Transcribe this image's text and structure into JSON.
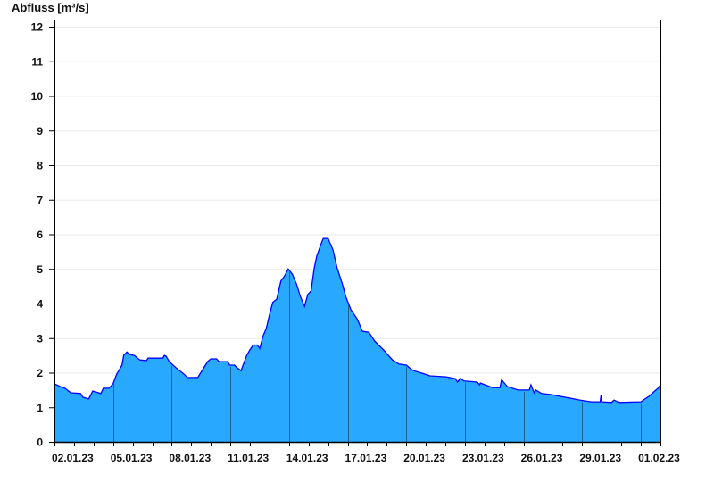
{
  "chart_data": {
    "type": "area",
    "title": "",
    "xlabel": "",
    "ylabel": "Abfluss [m³/s]",
    "ylim": [
      0,
      12
    ],
    "xlim": [
      "2023-01-02T00:00",
      "2023-02-02T00:00"
    ],
    "yticks": [
      "0",
      "1",
      "2",
      "3",
      "4",
      "5",
      "6",
      "7",
      "8",
      "9",
      "10",
      "11",
      "12"
    ],
    "xticks": [
      {
        "label": "02.01.23",
        "date": "2023-01-02T00:00"
      },
      {
        "label": "05.01.23",
        "date": "2023-01-05T00:00"
      },
      {
        "label": "08.01.23",
        "date": "2023-01-08T00:00"
      },
      {
        "label": "11.01.23",
        "date": "2023-01-11T00:00"
      },
      {
        "label": "14.01.23",
        "date": "2023-01-14T00:00"
      },
      {
        "label": "17.01.23",
        "date": "2023-01-17T00:00"
      },
      {
        "label": "20.01.23",
        "date": "2023-01-20T00:00"
      },
      {
        "label": "23.01.23",
        "date": "2023-01-23T00:00"
      },
      {
        "label": "26.01.23",
        "date": "2023-01-26T00:00"
      },
      {
        "label": "29.01.23",
        "date": "2023-01-29T00:00"
      },
      {
        "label": "01.02.23",
        "date": "2023-02-01T00:00"
      }
    ],
    "grid": {
      "horizontal": true,
      "vertical": false
    },
    "colors": {
      "fill": "#29A8FF",
      "line": "#0000FF",
      "grid": "#E8E8E8",
      "marker_lines": "#1F5F8F"
    },
    "series": [
      {
        "points": [
          [
            "2023-01-02T00:00",
            1.68
          ],
          [
            "2023-01-02T07:00",
            1.6
          ],
          [
            "2023-01-02T13:00",
            1.55
          ],
          [
            "2023-01-02T20:00",
            1.42
          ],
          [
            "2023-01-03T08:00",
            1.4
          ],
          [
            "2023-01-03T11:00",
            1.29
          ],
          [
            "2023-01-03T18:00",
            1.24
          ],
          [
            "2023-01-03T23:00",
            1.47
          ],
          [
            "2023-01-04T09:00",
            1.4
          ],
          [
            "2023-01-04T12:00",
            1.55
          ],
          [
            "2023-01-04T19:00",
            1.55
          ],
          [
            "2023-01-05T00:00",
            1.68
          ],
          [
            "2023-01-05T04:00",
            1.94
          ],
          [
            "2023-01-05T11:00",
            2.22
          ],
          [
            "2023-01-05T13:00",
            2.5
          ],
          [
            "2023-01-05T17:00",
            2.6
          ],
          [
            "2023-01-05T20:00",
            2.53
          ],
          [
            "2023-01-06T02:00",
            2.5
          ],
          [
            "2023-01-06T09:00",
            2.37
          ],
          [
            "2023-01-06T17:00",
            2.35
          ],
          [
            "2023-01-06T19:00",
            2.42
          ],
          [
            "2023-01-07T13:00",
            2.42
          ],
          [
            "2023-01-07T15:00",
            2.5
          ],
          [
            "2023-01-07T17:00",
            2.48
          ],
          [
            "2023-01-07T21:00",
            2.32
          ],
          [
            "2023-01-08T05:00",
            2.15
          ],
          [
            "2023-01-08T16:00",
            1.94
          ],
          [
            "2023-01-08T19:00",
            1.86
          ],
          [
            "2023-01-09T08:00",
            1.86
          ],
          [
            "2023-01-09T14:00",
            2.09
          ],
          [
            "2023-01-09T20:00",
            2.32
          ],
          [
            "2023-01-10T00:00",
            2.4
          ],
          [
            "2023-01-10T07:00",
            2.4
          ],
          [
            "2023-01-10T10:00",
            2.32
          ],
          [
            "2023-01-10T21:00",
            2.32
          ],
          [
            "2023-01-10T23:00",
            2.22
          ],
          [
            "2023-01-11T05:00",
            2.22
          ],
          [
            "2023-01-11T08:00",
            2.15
          ],
          [
            "2023-01-11T13:00",
            2.06
          ],
          [
            "2023-01-11T20:00",
            2.5
          ],
          [
            "2023-01-12T00:00",
            2.66
          ],
          [
            "2023-01-12T04:00",
            2.8
          ],
          [
            "2023-01-12T09:00",
            2.8
          ],
          [
            "2023-01-12T12:00",
            2.7
          ],
          [
            "2023-01-12T16:00",
            3.05
          ],
          [
            "2023-01-12T20:00",
            3.28
          ],
          [
            "2023-01-13T00:00",
            3.67
          ],
          [
            "2023-01-13T04:00",
            4.03
          ],
          [
            "2023-01-13T09:00",
            4.13
          ],
          [
            "2023-01-13T14:00",
            4.65
          ],
          [
            "2023-01-13T18:00",
            4.78
          ],
          [
            "2023-01-13T23:00",
            5.0
          ],
          [
            "2023-01-14T04:00",
            4.85
          ],
          [
            "2023-01-14T09:00",
            4.57
          ],
          [
            "2023-01-14T14:00",
            4.2
          ],
          [
            "2023-01-14T19:00",
            3.92
          ],
          [
            "2023-01-14T23:00",
            4.26
          ],
          [
            "2023-01-15T03:00",
            4.36
          ],
          [
            "2023-01-15T07:00",
            5.03
          ],
          [
            "2023-01-15T10:00",
            5.37
          ],
          [
            "2023-01-15T16:00",
            5.76
          ],
          [
            "2023-01-15T18:00",
            5.88
          ],
          [
            "2023-01-16T00:00",
            5.88
          ],
          [
            "2023-01-16T06:00",
            5.55
          ],
          [
            "2023-01-16T11:00",
            5.03
          ],
          [
            "2023-01-16T17:00",
            4.6
          ],
          [
            "2023-01-16T22:00",
            4.18
          ],
          [
            "2023-01-17T04:00",
            3.82
          ],
          [
            "2023-01-17T12:00",
            3.54
          ],
          [
            "2023-01-17T18:00",
            3.2
          ],
          [
            "2023-01-18T02:00",
            3.17
          ],
          [
            "2023-01-18T09:00",
            2.92
          ],
          [
            "2023-01-18T20:00",
            2.66
          ],
          [
            "2023-01-19T07:00",
            2.37
          ],
          [
            "2023-01-19T15:00",
            2.25
          ],
          [
            "2023-01-20T00:00",
            2.22
          ],
          [
            "2023-01-20T05:00",
            2.12
          ],
          [
            "2023-01-20T09:00",
            2.06
          ],
          [
            "2023-01-20T20:00",
            1.98
          ],
          [
            "2023-01-21T05:00",
            1.91
          ],
          [
            "2023-01-22T01:00",
            1.88
          ],
          [
            "2023-01-22T12:00",
            1.83
          ],
          [
            "2023-01-22T15:00",
            1.73
          ],
          [
            "2023-01-22T18:00",
            1.83
          ],
          [
            "2023-01-22T23:00",
            1.76
          ],
          [
            "2023-01-23T15:00",
            1.73
          ],
          [
            "2023-01-23T18:00",
            1.65
          ],
          [
            "2023-01-23T19:00",
            1.7
          ],
          [
            "2023-01-24T10:00",
            1.57
          ],
          [
            "2023-01-24T19:00",
            1.57
          ],
          [
            "2023-01-24T21:00",
            1.8
          ],
          [
            "2023-01-25T04:00",
            1.6
          ],
          [
            "2023-01-25T17:00",
            1.5
          ],
          [
            "2023-01-26T07:00",
            1.5
          ],
          [
            "2023-01-26T09:00",
            1.65
          ],
          [
            "2023-01-26T13:00",
            1.42
          ],
          [
            "2023-01-26T15:00",
            1.5
          ],
          [
            "2023-01-26T22:00",
            1.4
          ],
          [
            "2023-01-27T09:00",
            1.37
          ],
          [
            "2023-01-28T03:00",
            1.29
          ],
          [
            "2023-01-28T21:00",
            1.21
          ],
          [
            "2023-01-29T11:00",
            1.16
          ],
          [
            "2023-01-29T22:00",
            1.16
          ],
          [
            "2023-01-29T23:00",
            1.34
          ],
          [
            "2023-01-30T00:00",
            1.16
          ],
          [
            "2023-01-30T12:00",
            1.14
          ],
          [
            "2023-01-30T15:00",
            1.21
          ],
          [
            "2023-01-30T21:00",
            1.14
          ],
          [
            "2023-02-01T00:00",
            1.16
          ],
          [
            "2023-02-01T05:00",
            1.24
          ],
          [
            "2023-02-01T10:00",
            1.32
          ],
          [
            "2023-02-01T16:00",
            1.45
          ],
          [
            "2023-02-01T21:00",
            1.55
          ],
          [
            "2023-02-02T00:00",
            1.65
          ]
        ]
      }
    ]
  }
}
